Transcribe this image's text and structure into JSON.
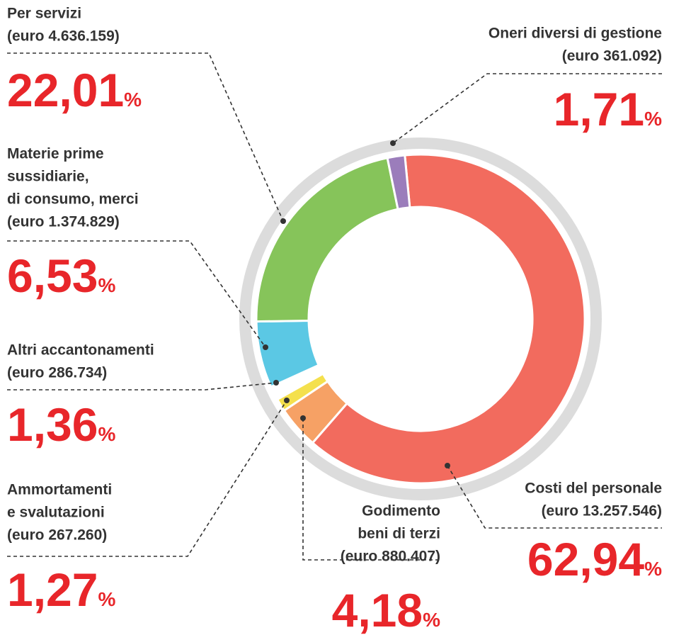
{
  "chart_data": {
    "type": "donut",
    "categories": [
      [
        "Costi del personale"
      ],
      [
        "Godimento",
        "beni di terzi"
      ],
      [
        "Ammortamenti",
        "e svalutazioni"
      ],
      [
        "Altri accantonamenti"
      ],
      [
        "Materie prime",
        "sussidiarie,",
        "di consumo, merci"
      ],
      [
        "Per servizi"
      ],
      [
        "Oneri diversi di gestione"
      ]
    ],
    "amount_labels": [
      "(euro 13.257.546)",
      "(euro 880.407)",
      "(euro 267.260)",
      "(euro 286.734)",
      "(euro 1.374.829)",
      "(euro 4.636.159)",
      "(euro 361.092)"
    ],
    "values": [
      62.94,
      4.18,
      1.27,
      1.36,
      6.53,
      22.01,
      1.71
    ],
    "value_labels": [
      "62,94",
      "4,18",
      "1,27",
      "1,36",
      "6,53",
      "22,01",
      "1,71"
    ],
    "percent_sign": "%",
    "colors": [
      "#f26b5e",
      "#f6a165",
      "#f4e04d",
      "#ffffff",
      "#5bc8e4",
      "#86c45a",
      "#9b7dbb"
    ]
  }
}
